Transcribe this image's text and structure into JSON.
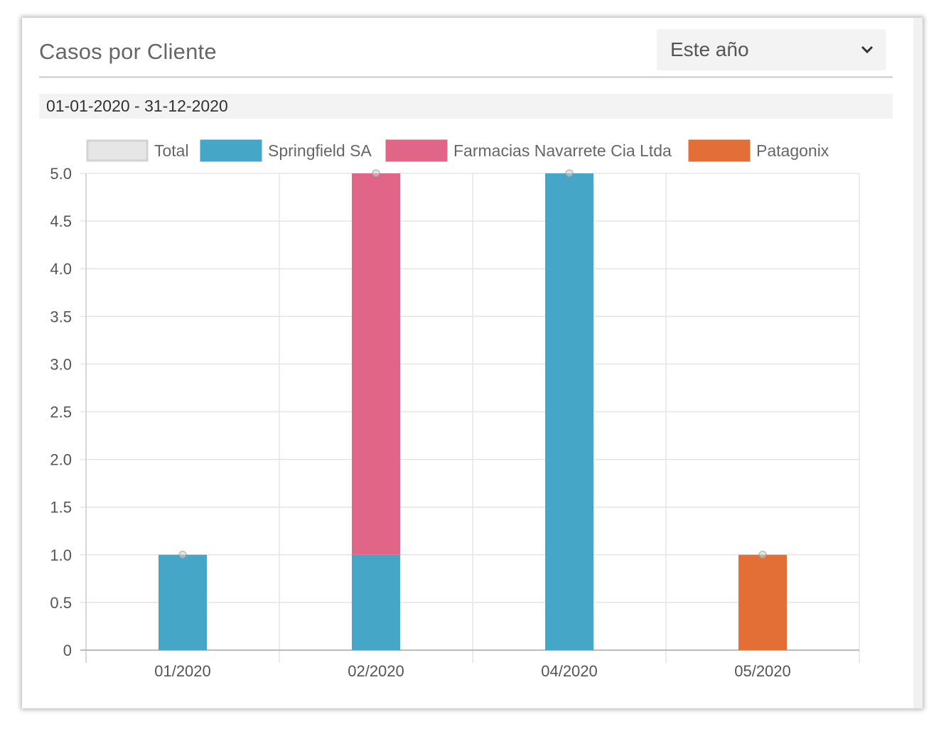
{
  "widget": {
    "title": "Casos por Cliente",
    "period_select": {
      "value": "Este año",
      "icon": "chevron-down-icon"
    },
    "date_range": "01-01-2020 - 31-12-2020"
  },
  "colors": {
    "Total": "#e6e6e6",
    "Springfield SA": "#46a6c8",
    "Farmacias Navarrete Cia Ltda": "#e06587",
    "Patagonix": "#e36f36",
    "grid": "#e5e5e5",
    "tick_text": "#555555"
  },
  "chart_data": {
    "type": "bar",
    "stacked": true,
    "categories": [
      "01/2020",
      "02/2020",
      "04/2020",
      "05/2020"
    ],
    "series": [
      {
        "name": "Springfield SA",
        "values": [
          1,
          1,
          5,
          0
        ]
      },
      {
        "name": "Farmacias Navarrete Cia Ltda",
        "values": [
          0,
          4,
          0,
          0
        ]
      },
      {
        "name": "Patagonix",
        "values": [
          0,
          0,
          0,
          1
        ]
      }
    ],
    "overlay_line": {
      "name": "Total",
      "values": [
        1,
        5,
        5,
        1
      ]
    },
    "legend": [
      "Total",
      "Springfield SA",
      "Farmacias Navarrete Cia Ltda",
      "Patagonix"
    ],
    "legend_position": "top",
    "ylim": [
      0,
      5
    ],
    "yticks": [
      "0",
      "0.5",
      "1.0",
      "1.5",
      "2.0",
      "2.5",
      "3.0",
      "3.5",
      "4.0",
      "4.5",
      "5.0"
    ],
    "grid": true
  }
}
